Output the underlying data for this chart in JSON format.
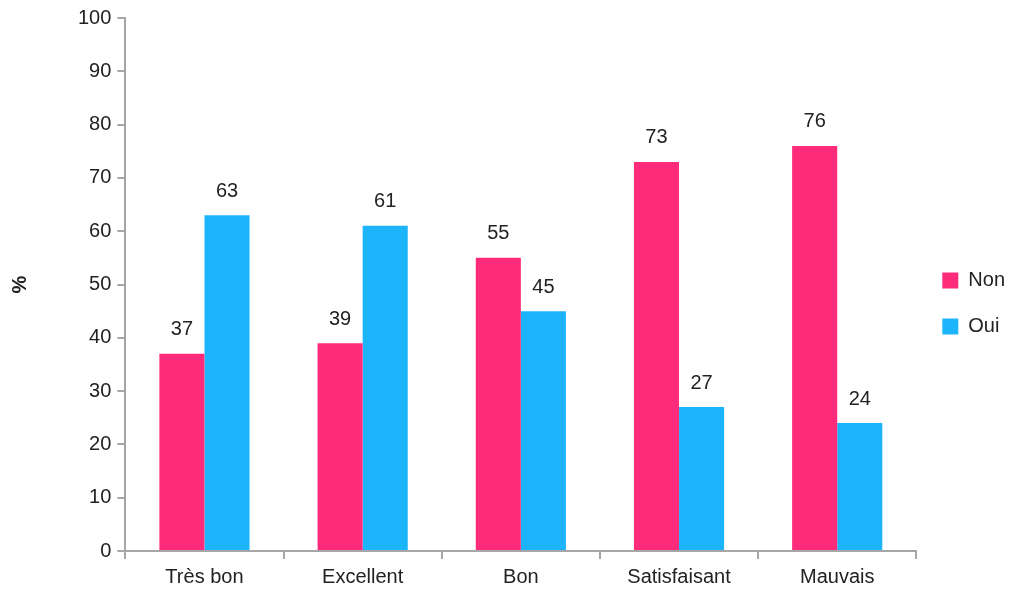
{
  "chart_data": {
    "type": "bar",
    "ylabel": "%",
    "categories": [
      "Très bon",
      "Excellent",
      "Bon",
      "Satisfaisant",
      "Mauvais"
    ],
    "series": [
      {
        "name": "Non",
        "color": "#fe2a7a",
        "values": [
          37,
          39,
          55,
          73,
          76
        ]
      },
      {
        "name": "Oui",
        "color": "#1cb5fb",
        "values": [
          63,
          61,
          45,
          27,
          24
        ]
      }
    ],
    "ylim": [
      0,
      100
    ],
    "yticks": [
      0,
      10,
      20,
      30,
      40,
      50,
      60,
      70,
      80,
      90,
      100
    ],
    "grid": false,
    "legend": "right",
    "data_labels": true
  }
}
